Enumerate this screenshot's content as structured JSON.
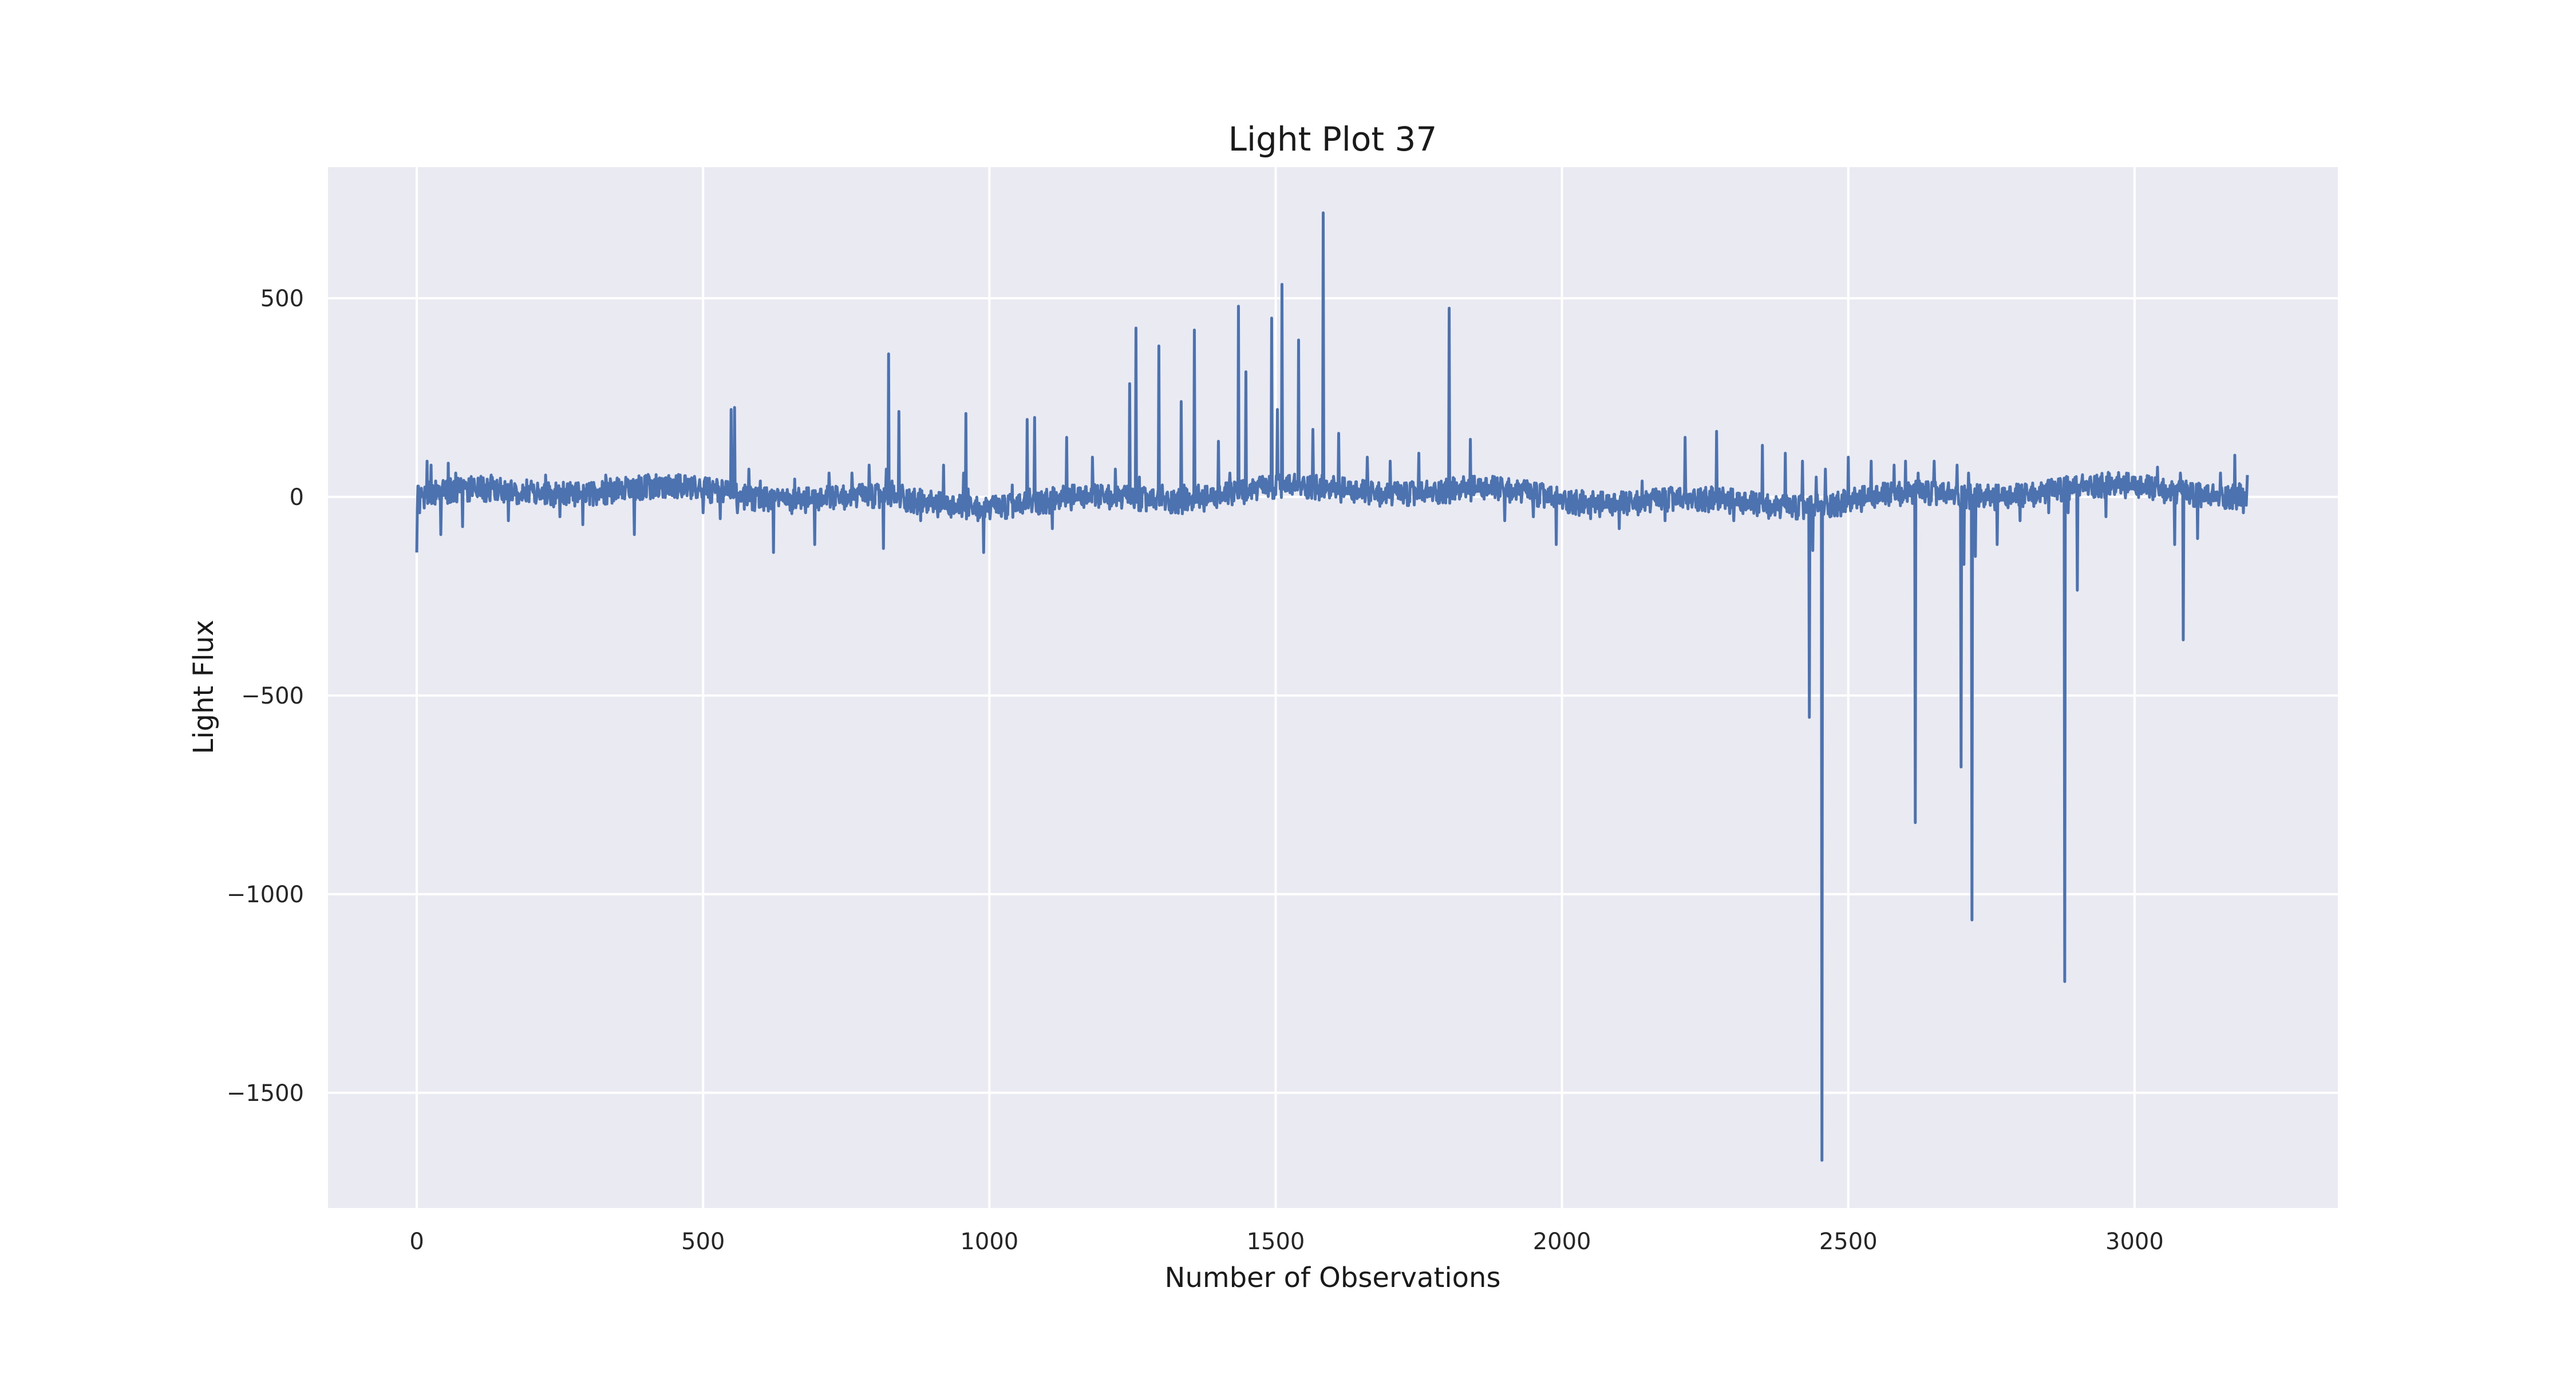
{
  "chart_data": {
    "type": "line",
    "title": "Light Plot 37",
    "xlabel": "Number of Observations",
    "ylabel": "Light Flux",
    "xlim": [
      -155,
      3355
    ],
    "ylim": [
      -1790,
      830
    ],
    "xticks": [
      0,
      500,
      1000,
      1500,
      2000,
      2500,
      3000
    ],
    "xtick_labels": [
      "0",
      "500",
      "1000",
      "1500",
      "2000",
      "2500",
      "3000"
    ],
    "yticks": [
      500,
      0,
      -500,
      -1000,
      -1500
    ],
    "ytick_labels": [
      "500",
      "0",
      "−500",
      "−1000",
      "−1500"
    ],
    "grid": true,
    "background": "#eaeaf2",
    "grid_color": "#ffffff",
    "line_color": "#4c72b0",
    "n_points": 3198,
    "baseline_noise": 32,
    "flux_points": [
      [
        0,
        -140
      ],
      [
        5,
        -40
      ],
      [
        10,
        10
      ],
      [
        18,
        90
      ],
      [
        25,
        80
      ],
      [
        33,
        40
      ],
      [
        42,
        -95
      ],
      [
        55,
        85
      ],
      [
        68,
        60
      ],
      [
        80,
        -75
      ],
      [
        100,
        45
      ],
      [
        130,
        55
      ],
      [
        160,
        -60
      ],
      [
        200,
        40
      ],
      [
        225,
        55
      ],
      [
        250,
        -50
      ],
      [
        290,
        -70
      ],
      [
        330,
        55
      ],
      [
        380,
        -95
      ],
      [
        420,
        45
      ],
      [
        460,
        55
      ],
      [
        500,
        -40
      ],
      [
        530,
        -55
      ],
      [
        549,
        220
      ],
      [
        555,
        225
      ],
      [
        560,
        -40
      ],
      [
        580,
        70
      ],
      [
        600,
        40
      ],
      [
        623,
        -140
      ],
      [
        660,
        45
      ],
      [
        695,
        -120
      ],
      [
        720,
        60
      ],
      [
        760,
        60
      ],
      [
        790,
        80
      ],
      [
        815,
        -130
      ],
      [
        820,
        70
      ],
      [
        824,
        360
      ],
      [
        830,
        40
      ],
      [
        842,
        215
      ],
      [
        848,
        30
      ],
      [
        880,
        -60
      ],
      [
        920,
        80
      ],
      [
        955,
        60
      ],
      [
        959,
        210
      ],
      [
        963,
        20
      ],
      [
        990,
        -140
      ],
      [
        1040,
        30
      ],
      [
        1066,
        195
      ],
      [
        1070,
        20
      ],
      [
        1079,
        200
      ],
      [
        1083,
        10
      ],
      [
        1110,
        -80
      ],
      [
        1135,
        150
      ],
      [
        1139,
        20
      ],
      [
        1180,
        100
      ],
      [
        1220,
        70
      ],
      [
        1245,
        285
      ],
      [
        1250,
        20
      ],
      [
        1256,
        425
      ],
      [
        1262,
        50
      ],
      [
        1296,
        380
      ],
      [
        1302,
        30
      ],
      [
        1335,
        240
      ],
      [
        1340,
        30
      ],
      [
        1358,
        420
      ],
      [
        1365,
        30
      ],
      [
        1400,
        140
      ],
      [
        1420,
        60
      ],
      [
        1435,
        480
      ],
      [
        1440,
        40
      ],
      [
        1448,
        315
      ],
      [
        1455,
        30
      ],
      [
        1493,
        450
      ],
      [
        1498,
        20
      ],
      [
        1503,
        220
      ],
      [
        1508,
        20
      ],
      [
        1511,
        535
      ],
      [
        1516,
        40
      ],
      [
        1540,
        395
      ],
      [
        1545,
        30
      ],
      [
        1565,
        170
      ],
      [
        1570,
        20
      ],
      [
        1583,
        715
      ],
      [
        1588,
        40
      ],
      [
        1610,
        160
      ],
      [
        1615,
        20
      ],
      [
        1660,
        100
      ],
      [
        1700,
        90
      ],
      [
        1750,
        110
      ],
      [
        1803,
        475
      ],
      [
        1808,
        20
      ],
      [
        1840,
        145
      ],
      [
        1845,
        20
      ],
      [
        1900,
        -60
      ],
      [
        1950,
        -50
      ],
      [
        1990,
        -120
      ],
      [
        2050,
        -55
      ],
      [
        2100,
        -80
      ],
      [
        2140,
        40
      ],
      [
        2180,
        -60
      ],
      [
        2215,
        150
      ],
      [
        2220,
        -30
      ],
      [
        2270,
        165
      ],
      [
        2275,
        20
      ],
      [
        2300,
        -60
      ],
      [
        2350,
        130
      ],
      [
        2390,
        110
      ],
      [
        2420,
        90
      ],
      [
        2432,
        -555
      ],
      [
        2438,
        -135
      ],
      [
        2444,
        50
      ],
      [
        2454,
        -1670
      ],
      [
        2460,
        70
      ],
      [
        2500,
        100
      ],
      [
        2540,
        90
      ],
      [
        2580,
        80
      ],
      [
        2600,
        90
      ],
      [
        2617,
        -820
      ],
      [
        2622,
        60
      ],
      [
        2650,
        90
      ],
      [
        2690,
        80
      ],
      [
        2697,
        -680
      ],
      [
        2702,
        -170
      ],
      [
        2710,
        60
      ],
      [
        2716,
        -1065
      ],
      [
        2722,
        -150
      ],
      [
        2730,
        30
      ],
      [
        2760,
        -120
      ],
      [
        2800,
        -60
      ],
      [
        2850,
        -40
      ],
      [
        2878,
        -1220
      ],
      [
        2884,
        -40
      ],
      [
        2900,
        -235
      ],
      [
        2905,
        30
      ],
      [
        2950,
        -50
      ],
      [
        3000,
        40
      ],
      [
        3040,
        75
      ],
      [
        3070,
        -120
      ],
      [
        3080,
        60
      ],
      [
        3085,
        -360
      ],
      [
        3090,
        40
      ],
      [
        3110,
        -105
      ],
      [
        3150,
        60
      ],
      [
        3175,
        105
      ],
      [
        3190,
        -40
      ],
      [
        3197,
        55
      ]
    ]
  }
}
